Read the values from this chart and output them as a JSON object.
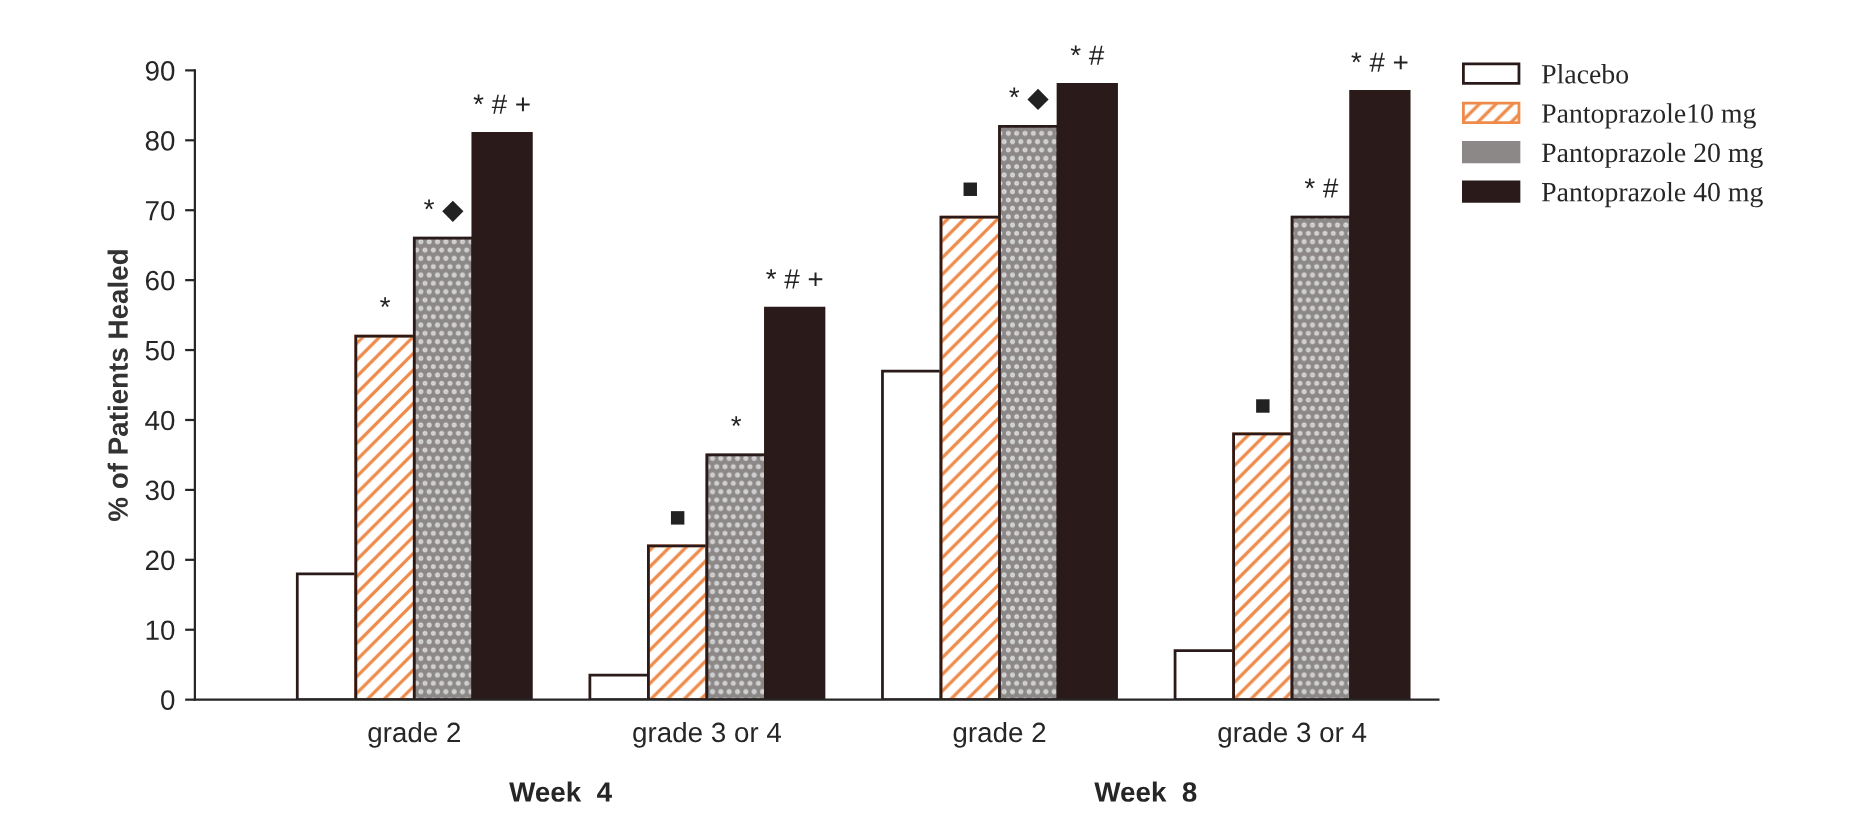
{
  "chart_data": {
    "type": "bar",
    "ylabel": "% of Patients Healed",
    "categories": [
      "grade 2",
      "grade 3 or 4",
      "grade 2",
      "grade 3 or 4"
    ],
    "series": [
      {
        "name": "Placebo",
        "color": "#ffffff",
        "values": [
          18,
          3.5,
          47,
          7
        ],
        "value_labels": [
          null,
          null,
          null,
          null
        ]
      },
      {
        "name": "Pantoprazole10 mg",
        "color": "#ee8a4a",
        "values": [
          52,
          22,
          69,
          38
        ],
        "value_labels": [
          "*",
          "■",
          "■",
          "■"
        ]
      },
      {
        "name": "Pantoprazole 20 mg",
        "color": "#8c8888",
        "values": [
          66,
          35,
          82,
          69
        ],
        "value_labels": [
          "* ◆",
          "*",
          "* ◆",
          "* #"
        ]
      },
      {
        "name": "Pantoprazole 40 mg",
        "color": "#2b1a1a",
        "values": [
          81,
          56,
          88,
          87
        ],
        "value_labels": [
          "* # +",
          "* # +",
          "* #",
          "* # +"
        ]
      }
    ],
    "annotations": [
      "Week  4",
      "Week  8"
    ],
    "ylim": [
      0,
      90
    ],
    "yticks": [
      0,
      10,
      20,
      30,
      40,
      50,
      60,
      70,
      80,
      90
    ],
    "legend": "top right",
    "grid": false
  }
}
